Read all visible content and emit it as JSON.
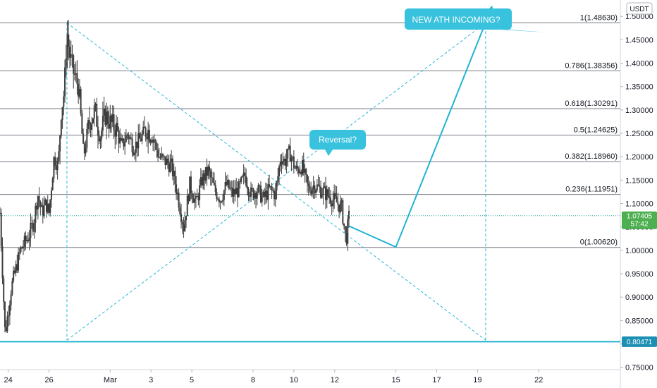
{
  "currency_label": "USDT",
  "last_price_label": "1.07405",
  "countdown_label": "57:42",
  "bottom_line_label": "0.80471",
  "colors": {
    "candle": "#3d3d3d",
    "fib_line": "#787b86",
    "dashed": "#2bb7d6",
    "projection": "#22b3d3",
    "bubble": "#38c2dd",
    "last_price": "#26a69a",
    "last_badge": "#4caf50",
    "bottom_line": "#1fb0d0",
    "bottom_badge": "#1d8fb3"
  },
  "chart_data": {
    "type": "candlestick",
    "ylim": [
      0.745,
      1.535
    ],
    "xlim": [
      23.6,
      54.0
    ],
    "y_ticks": [
      "0.75000",
      "0.80000",
      "0.85000",
      "0.90000",
      "0.95000",
      "1.00000",
      "1.05000",
      "1.10000",
      "1.15000",
      "1.20000",
      "1.25000",
      "1.30000",
      "1.35000",
      "1.40000",
      "1.45000",
      "1.50000"
    ],
    "x_ticks": [
      {
        "label": "24",
        "day": 24
      },
      {
        "label": "26",
        "day": 26
      },
      {
        "label": "Mar",
        "day": 29
      },
      {
        "label": "3",
        "day": 31
      },
      {
        "label": "5",
        "day": 33
      },
      {
        "label": "8",
        "day": 36
      },
      {
        "label": "10",
        "day": 38
      },
      {
        "label": "12",
        "day": 40
      },
      {
        "label": "15",
        "day": 43
      },
      {
        "label": "17",
        "day": 45
      },
      {
        "label": "19",
        "day": 47
      },
      {
        "label": "22",
        "day": 50
      }
    ],
    "fib_levels": [
      {
        "label": "1(1.48630)",
        "value": 1.4863
      },
      {
        "label": "0.786(1.38356)",
        "value": 1.38356
      },
      {
        "label": "0.618(1.30291)",
        "value": 1.30291
      },
      {
        "label": "0.5(1.24625)",
        "value": 1.24625
      },
      {
        "label": "0.382(1.18960)",
        "value": 1.1896
      },
      {
        "label": "0.236(1.11951)",
        "value": 1.11951
      },
      {
        "label": "0(1.00620)",
        "value": 1.0062
      }
    ],
    "last_price": 1.07405,
    "support_level": 0.80471,
    "annotations": [
      {
        "text": "NEW ATH INCOMING?"
      },
      {
        "text": "Reversal?"
      }
    ],
    "price_path": [
      [
        23.6,
        1.08
      ],
      [
        23.85,
        0.82
      ],
      [
        24.15,
        0.92
      ],
      [
        24.6,
        1.0
      ],
      [
        25.0,
        1.03
      ],
      [
        25.25,
        1.06
      ],
      [
        25.45,
        1.12
      ],
      [
        25.65,
        1.08
      ],
      [
        25.85,
        1.1
      ],
      [
        26.0,
        1.08
      ],
      [
        26.25,
        1.2
      ],
      [
        26.45,
        1.18
      ],
      [
        26.6,
        1.3
      ],
      [
        26.75,
        1.34
      ],
      [
        26.88,
        1.47
      ],
      [
        27.0,
        1.42
      ],
      [
        27.2,
        1.38
      ],
      [
        27.45,
        1.35
      ],
      [
        27.7,
        1.2
      ],
      [
        27.95,
        1.27
      ],
      [
        28.25,
        1.3
      ],
      [
        28.5,
        1.24
      ],
      [
        28.75,
        1.29
      ],
      [
        29.05,
        1.27
      ],
      [
        29.3,
        1.26
      ],
      [
        29.55,
        1.22
      ],
      [
        29.85,
        1.25
      ],
      [
        30.15,
        1.22
      ],
      [
        30.5,
        1.24
      ],
      [
        30.8,
        1.26
      ],
      [
        31.1,
        1.24
      ],
      [
        31.4,
        1.2
      ],
      [
        31.7,
        1.19
      ],
      [
        32.0,
        1.18
      ],
      [
        32.3,
        1.12
      ],
      [
        32.6,
        1.05
      ],
      [
        32.9,
        1.14
      ],
      [
        33.2,
        1.1
      ],
      [
        33.5,
        1.15
      ],
      [
        33.8,
        1.17
      ],
      [
        34.1,
        1.13
      ],
      [
        34.4,
        1.11
      ],
      [
        34.7,
        1.14
      ],
      [
        35.0,
        1.12
      ],
      [
        35.3,
        1.13
      ],
      [
        35.6,
        1.16
      ],
      [
        35.9,
        1.12
      ],
      [
        36.2,
        1.13
      ],
      [
        36.5,
        1.11
      ],
      [
        36.8,
        1.13
      ],
      [
        37.1,
        1.12
      ],
      [
        37.35,
        1.2
      ],
      [
        37.55,
        1.19
      ],
      [
        37.8,
        1.21
      ],
      [
        38.1,
        1.17
      ],
      [
        38.4,
        1.18
      ],
      [
        38.7,
        1.13
      ],
      [
        39.0,
        1.14
      ],
      [
        39.3,
        1.13
      ],
      [
        39.6,
        1.12
      ],
      [
        39.9,
        1.11
      ],
      [
        40.15,
        1.1
      ],
      [
        40.35,
        1.09
      ],
      [
        40.55,
        1.02
      ],
      [
        40.7,
        1.07
      ]
    ],
    "projection": [
      {
        "day": 40.7,
        "value": 1.052
      },
      {
        "day": 43.0,
        "value": 1.007
      },
      {
        "day": 47.7,
        "value": 1.52
      }
    ],
    "triangle": {
      "apex": {
        "day": 26.88,
        "value": 1.4863
      },
      "bottom_left": {
        "day": 26.88,
        "value": 0.808
      },
      "bottom_right": {
        "day": 47.4,
        "value": 0.808
      },
      "top_right": {
        "day": 47.4,
        "value": 1.4863
      }
    }
  }
}
